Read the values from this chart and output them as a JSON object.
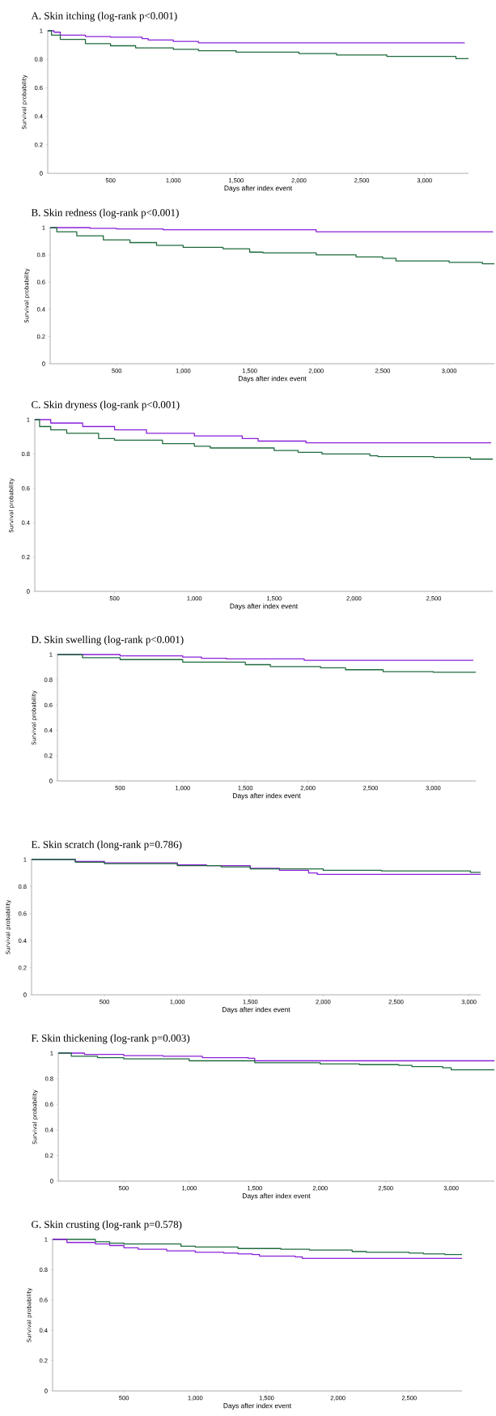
{
  "chart_data": [
    {
      "type": "step",
      "title": "A.  Skin itching (log-rank p<0.001)",
      "xlabel": "Days after index event",
      "ylabel": "Survival probability",
      "xlim": [
        0,
        3350
      ],
      "ylim": [
        0,
        1
      ],
      "xticks": [
        500,
        {
          "value": 1000,
          "label": "1,000"
        },
        {
          "value": 1500,
          "label": "1,500"
        },
        {
          "value": 2000,
          "label": "2,000"
        },
        {
          "value": 2500,
          "label": "2,500"
        },
        {
          "value": 3000,
          "label": "3,000"
        }
      ],
      "yticks": [
        0,
        0.2,
        0.4,
        0.6,
        0.8,
        1
      ],
      "line_style": "solid",
      "series": [
        {
          "color": "#8a22d8",
          "x": [
            0,
            50,
            100,
            300,
            500,
            750,
            800,
            1000,
            1200,
            1220,
            3320
          ],
          "values": [
            1,
            0.99,
            0.97,
            0.96,
            0.955,
            0.945,
            0.935,
            0.925,
            0.915,
            0.915,
            0.915
          ]
        },
        {
          "color": "#1e6b3c",
          "x": [
            0,
            30,
            100,
            300,
            500,
            700,
            1000,
            1200,
            1500,
            2000,
            2300,
            2700,
            3250,
            3350
          ],
          "values": [
            1,
            0.97,
            0.94,
            0.91,
            0.895,
            0.88,
            0.87,
            0.86,
            0.85,
            0.84,
            0.83,
            0.82,
            0.805,
            0.805
          ]
        }
      ]
    },
    {
      "type": "step",
      "title": "B.  Skin redness (log-rank p<0.001)",
      "xlabel": "Days after index event",
      "ylabel": "Survival probability",
      "xlim": [
        0,
        3340
      ],
      "ylim": [
        0,
        1
      ],
      "xticks": [
        500,
        {
          "value": 1000,
          "label": "1,000"
        },
        {
          "value": 1500,
          "label": "1,500"
        },
        {
          "value": 2000,
          "label": "2,000"
        },
        {
          "value": 2500,
          "label": "2,500"
        },
        {
          "value": 3000,
          "label": "3,000"
        }
      ],
      "yticks": [
        0,
        0.2,
        0.4,
        0.6,
        0.8,
        1
      ],
      "line_style": "solid",
      "series": [
        {
          "color": "#8a22d8",
          "x": [
            0,
            300,
            500,
            850,
            2000,
            3330
          ],
          "values": [
            1,
            0.995,
            0.99,
            0.985,
            0.97,
            0.97
          ]
        },
        {
          "color": "#1e6b3c",
          "x": [
            0,
            50,
            200,
            400,
            600,
            800,
            1000,
            1300,
            1500,
            1600,
            2000,
            2300,
            2500,
            2600,
            3000,
            3250,
            3340
          ],
          "values": [
            1,
            0.97,
            0.94,
            0.91,
            0.89,
            0.87,
            0.855,
            0.845,
            0.82,
            0.815,
            0.8,
            0.785,
            0.775,
            0.755,
            0.745,
            0.735,
            0.735
          ]
        }
      ]
    },
    {
      "type": "step",
      "title": "C.  Skin dryness (log-rank p<0.001)",
      "xlabel": "Days after index event",
      "ylabel": "Survival probability",
      "xlim": [
        0,
        2870
      ],
      "ylim": [
        0,
        1
      ],
      "xticks": [
        500,
        {
          "value": 1000,
          "label": "1,000"
        },
        {
          "value": 1500,
          "label": "1,500"
        },
        {
          "value": 2000,
          "label": "2,000"
        },
        {
          "value": 2500,
          "label": "2,500"
        }
      ],
      "yticks": [
        0,
        0.2,
        0.4,
        0.6,
        0.8,
        1
      ],
      "line_style": "solid",
      "series": [
        {
          "color": "#8a22d8",
          "x": [
            0,
            100,
            300,
            500,
            700,
            1000,
            1300,
            1400,
            1700,
            2860
          ],
          "values": [
            1,
            0.98,
            0.96,
            0.94,
            0.92,
            0.905,
            0.89,
            0.875,
            0.865,
            0.865
          ]
        },
        {
          "color": "#1e6b3c",
          "x": [
            0,
            30,
            100,
            200,
            400,
            500,
            800,
            1000,
            1100,
            1500,
            1650,
            1800,
            2100,
            2150,
            2500,
            2730,
            2870
          ],
          "values": [
            1,
            0.96,
            0.94,
            0.92,
            0.89,
            0.88,
            0.86,
            0.845,
            0.835,
            0.82,
            0.81,
            0.8,
            0.79,
            0.785,
            0.78,
            0.77,
            0.77
          ]
        }
      ]
    },
    {
      "type": "step",
      "title": "D.  Skin swelling (log-rank p<0.001)",
      "xlabel": "Days after index event",
      "ylabel": "Survival probability",
      "xlim": [
        0,
        3340
      ],
      "ylim": [
        0,
        1
      ],
      "xticks": [
        500,
        {
          "value": 1000,
          "label": "1,000"
        },
        {
          "value": 1500,
          "label": "1,500"
        },
        {
          "value": 2000,
          "label": "2,000"
        },
        {
          "value": 2500,
          "label": "2,500"
        },
        {
          "value": 3000,
          "label": "3,000"
        }
      ],
      "yticks": [
        0,
        0.2,
        0.4,
        0.6,
        0.8,
        1
      ],
      "line_style": "solid",
      "series": [
        {
          "color": "#8a22d8",
          "x": [
            0,
            500,
            1000,
            1150,
            1350,
            1970,
            3320
          ],
          "values": [
            1,
            0.99,
            0.98,
            0.97,
            0.965,
            0.955,
            0.955
          ]
        },
        {
          "color": "#1e6b3c",
          "x": [
            0,
            200,
            500,
            1000,
            1500,
            1700,
            2100,
            2300,
            2600,
            3000,
            3340
          ],
          "values": [
            1,
            0.975,
            0.96,
            0.94,
            0.92,
            0.905,
            0.895,
            0.88,
            0.865,
            0.86,
            0.86
          ]
        }
      ]
    },
    {
      "type": "step",
      "title": "E.  Skin scratch (long-rank p=0.786)",
      "xlabel": "Days after index event",
      "ylabel": "Survival probability",
      "xlim": [
        0,
        3080
      ],
      "ylim": [
        0,
        1
      ],
      "xticks": [
        500,
        {
          "value": 1000,
          "label": "1,000"
        },
        {
          "value": 1500,
          "label": "1,500"
        },
        {
          "value": 2000,
          "label": "2,000"
        },
        {
          "value": 2500,
          "label": "2,500"
        },
        {
          "value": 3000,
          "label": "3,000"
        }
      ],
      "yticks": [
        0,
        0.2,
        0.4,
        0.6,
        0.8,
        1
      ],
      "line_style": "solid",
      "series": [
        {
          "color": "#8a22d8",
          "x": [
            0,
            300,
            500,
            1000,
            1200,
            1500,
            1700,
            1900,
            1960,
            3080
          ],
          "values": [
            1,
            0.985,
            0.975,
            0.96,
            0.955,
            0.935,
            0.92,
            0.9,
            0.89,
            0.89
          ]
        },
        {
          "color": "#1e6b3c",
          "x": [
            0,
            300,
            500,
            1000,
            1300,
            1500,
            2000,
            2400,
            3010,
            3080
          ],
          "values": [
            1,
            0.98,
            0.97,
            0.955,
            0.945,
            0.93,
            0.92,
            0.915,
            0.905,
            0.905
          ]
        }
      ]
    },
    {
      "type": "step",
      "title": "F.  Skin thickening (log-rank p=0.003)",
      "xlabel": "Days after index event",
      "ylabel": "Survival probability",
      "xlim": [
        0,
        3330
      ],
      "ylim": [
        0,
        1
      ],
      "xticks": [
        500,
        {
          "value": 1000,
          "label": "1,000"
        },
        {
          "value": 1500,
          "label": "1,500"
        },
        {
          "value": 2000,
          "label": "2,000"
        },
        {
          "value": 2500,
          "label": "2,500"
        },
        {
          "value": 3000,
          "label": "3,000"
        }
      ],
      "yticks": [
        0,
        0.2,
        0.4,
        0.6,
        0.8,
        1
      ],
      "line_style": "solid",
      "series": [
        {
          "color": "#8a22d8",
          "x": [
            0,
            200,
            500,
            800,
            1100,
            1450,
            1500,
            3330
          ],
          "values": [
            1,
            0.99,
            0.98,
            0.975,
            0.965,
            0.96,
            0.94,
            0.94
          ]
        },
        {
          "color": "#1e6b3c",
          "x": [
            0,
            100,
            300,
            500,
            1000,
            1500,
            2000,
            2300,
            2600,
            2700,
            2935,
            3000,
            3330
          ],
          "values": [
            1,
            0.975,
            0.965,
            0.955,
            0.94,
            0.925,
            0.915,
            0.91,
            0.905,
            0.895,
            0.885,
            0.87,
            0.87
          ]
        }
      ]
    },
    {
      "type": "step",
      "title": "G.  Skin crusting (log-rank p=0.578)",
      "xlabel": "Days after index event",
      "ylabel": "Survival probability",
      "xlim": [
        0,
        2870
      ],
      "ylim": [
        0,
        1
      ],
      "xticks": [
        500,
        {
          "value": 1000,
          "label": "1,000"
        },
        {
          "value": 1500,
          "label": "1,500"
        },
        {
          "value": 2000,
          "label": "2,000"
        },
        {
          "value": 2500,
          "label": "2,500"
        }
      ],
      "yticks": [
        0,
        0.2,
        0.4,
        0.6,
        0.8,
        1
      ],
      "line_style": "solid",
      "series": [
        {
          "color": "#1e6b3c",
          "x": [
            0,
            300,
            400,
            500,
            900,
            1000,
            1300,
            1600,
            1800,
            2100,
            2200,
            2500,
            2600,
            2750,
            2870
          ],
          "values": [
            1,
            0.985,
            0.975,
            0.97,
            0.955,
            0.95,
            0.94,
            0.935,
            0.93,
            0.92,
            0.915,
            0.91,
            0.905,
            0.9,
            0.9
          ]
        },
        {
          "color": "#8a22d8",
          "x": [
            0,
            100,
            300,
            400,
            500,
            600,
            800,
            1000,
            1200,
            1300,
            1400,
            1450,
            1700,
            1750,
            2870
          ],
          "values": [
            1,
            0.98,
            0.97,
            0.96,
            0.945,
            0.935,
            0.925,
            0.915,
            0.91,
            0.905,
            0.9,
            0.89,
            0.885,
            0.875,
            0.875
          ]
        }
      ]
    }
  ]
}
